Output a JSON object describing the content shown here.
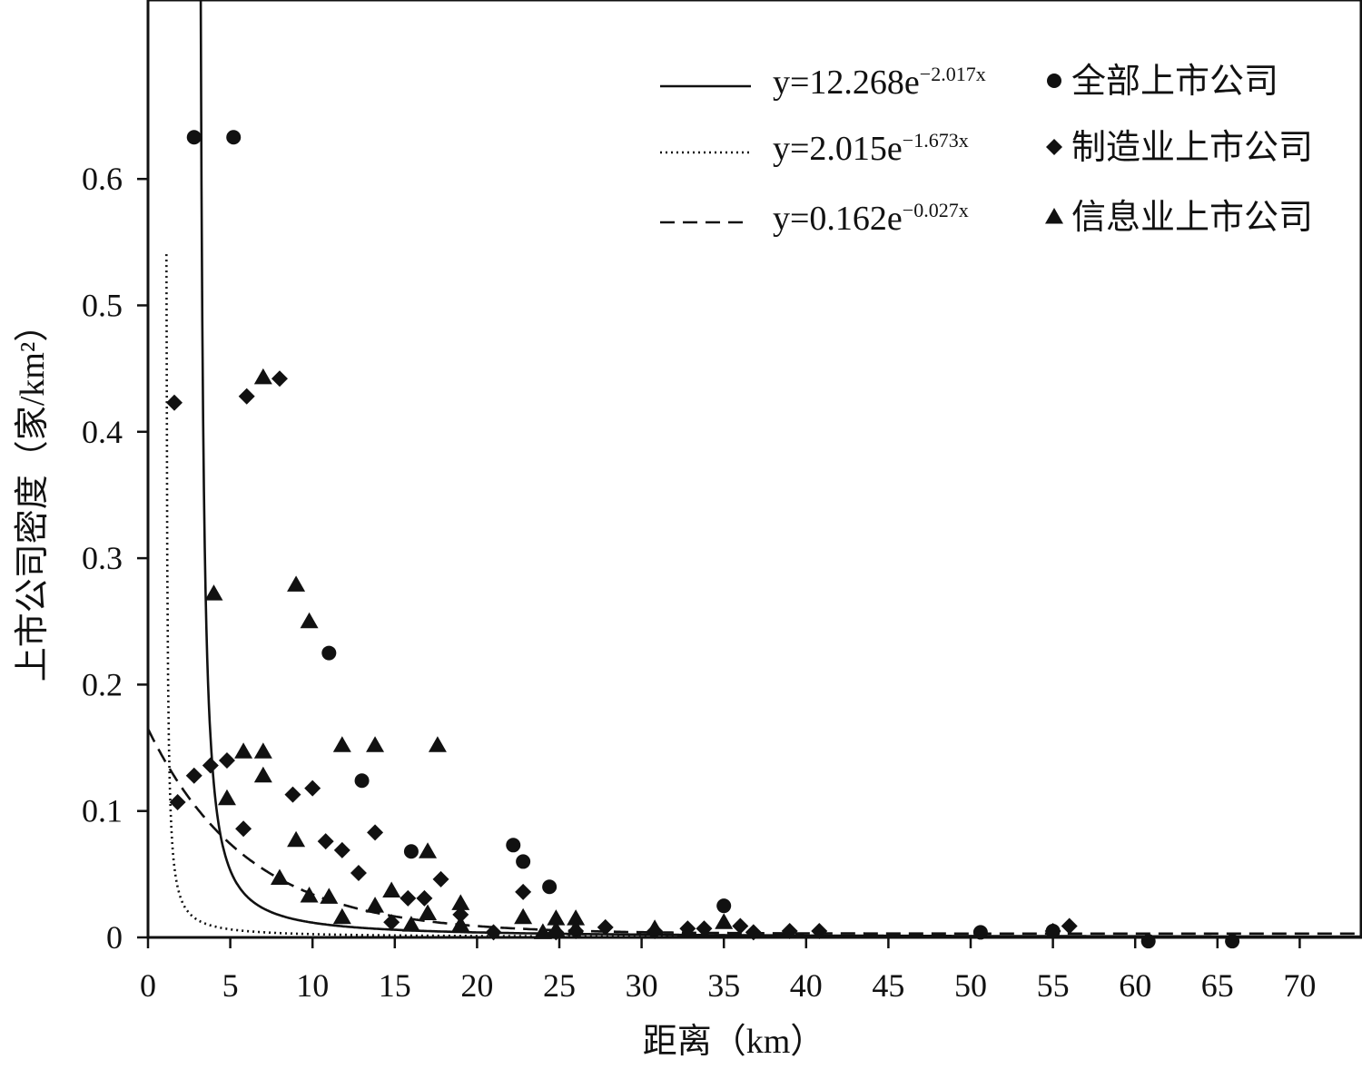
{
  "chart_data": {
    "type": "scatter",
    "xlabel": "距离（km）",
    "ylabel": "上市公司密度（家/km²）",
    "xlim": [
      0,
      74
    ],
    "ylim": [
      0,
      0.74
    ],
    "x_ticks": [
      0,
      5,
      10,
      15,
      20,
      25,
      30,
      35,
      40,
      45,
      50,
      55,
      60,
      65,
      70
    ],
    "y_ticks": [
      0,
      0.1,
      0.2,
      0.3,
      0.4,
      0.5,
      0.6
    ],
    "y_tick_labels": [
      "0",
      "0.1",
      "0.2",
      "0.3",
      "0.4",
      "0.5",
      "0.6"
    ],
    "legend_position": "top-right",
    "grid": false,
    "fit_lines": [
      {
        "label": "y=12.268e",
        "exponent": "−2.017x",
        "style": "solid",
        "equation": {
          "a": 12.268,
          "b": 2.017
        }
      },
      {
        "label": "y=2.015e",
        "exponent": "−1.673x",
        "style": "dotted",
        "equation": {
          "a": 2.015,
          "b": 1.673
        }
      },
      {
        "label": "y=0.162e",
        "exponent": "−0.027x",
        "style": "dashed",
        "equation": {
          "a": 0.162,
          "b": 0.027
        }
      }
    ],
    "series": [
      {
        "name": "全部上市公司",
        "marker": "circle",
        "points": [
          [
            2.8,
            0.633
          ],
          [
            5.2,
            0.633
          ],
          [
            11,
            0.225
          ],
          [
            13,
            0.124
          ],
          [
            16,
            0.068
          ],
          [
            22.2,
            0.073
          ],
          [
            22.8,
            0.06
          ],
          [
            24.4,
            0.04
          ],
          [
            35,
            0.025
          ],
          [
            50.6,
            0.004
          ],
          [
            55,
            0.005
          ],
          [
            60.8,
            -0.003
          ],
          [
            65.9,
            -0.003
          ]
        ]
      },
      {
        "name": "制造业上市公司",
        "marker": "diamond",
        "points": [
          [
            1.6,
            0.423
          ],
          [
            1.8,
            0.107
          ],
          [
            2.8,
            0.128
          ],
          [
            3.8,
            0.136
          ],
          [
            4.8,
            0.14
          ],
          [
            5.8,
            0.086
          ],
          [
            6,
            0.428
          ],
          [
            8,
            0.442
          ],
          [
            8.8,
            0.113
          ],
          [
            10,
            0.118
          ],
          [
            10.8,
            0.076
          ],
          [
            11.8,
            0.069
          ],
          [
            12.8,
            0.051
          ],
          [
            13.8,
            0.083
          ],
          [
            14.8,
            0.012
          ],
          [
            15.8,
            0.031
          ],
          [
            16.8,
            0.031
          ],
          [
            17.8,
            0.046
          ],
          [
            19,
            0.018
          ],
          [
            21,
            0.004
          ],
          [
            22.8,
            0.036
          ],
          [
            24.8,
            0.004
          ],
          [
            26,
            0.005
          ],
          [
            27.8,
            0.008
          ],
          [
            30.8,
            0.005
          ],
          [
            32.8,
            0.007
          ],
          [
            33.8,
            0.007
          ],
          [
            36,
            0.009
          ],
          [
            36.8,
            0.004
          ],
          [
            39,
            0.005
          ],
          [
            40.8,
            0.005
          ],
          [
            55,
            0.005
          ],
          [
            56,
            0.009
          ]
        ]
      },
      {
        "name": "信息业上市公司",
        "marker": "triangle",
        "points": [
          [
            4,
            0.272
          ],
          [
            4.8,
            0.11
          ],
          [
            5.8,
            0.147
          ],
          [
            7,
            0.443
          ],
          [
            7,
            0.147
          ],
          [
            7,
            0.128
          ],
          [
            8,
            0.047
          ],
          [
            9,
            0.279
          ],
          [
            9,
            0.077
          ],
          [
            9.8,
            0.25
          ],
          [
            9.8,
            0.033
          ],
          [
            11,
            0.032
          ],
          [
            11.8,
            0.152
          ],
          [
            11.8,
            0.016
          ],
          [
            13.8,
            0.152
          ],
          [
            13.8,
            0.025
          ],
          [
            14.8,
            0.037
          ],
          [
            16,
            0.01
          ],
          [
            17,
            0.068
          ],
          [
            17,
            0.019
          ],
          [
            17.6,
            0.152
          ],
          [
            19,
            0.027
          ],
          [
            19,
            0.01
          ],
          [
            22.8,
            0.016
          ],
          [
            24,
            0.004
          ],
          [
            24.8,
            0.015
          ],
          [
            24.8,
            0.006
          ],
          [
            26,
            0.015
          ],
          [
            26,
            0.007
          ],
          [
            30.8,
            0.007
          ],
          [
            35,
            0.012
          ]
        ]
      }
    ]
  }
}
